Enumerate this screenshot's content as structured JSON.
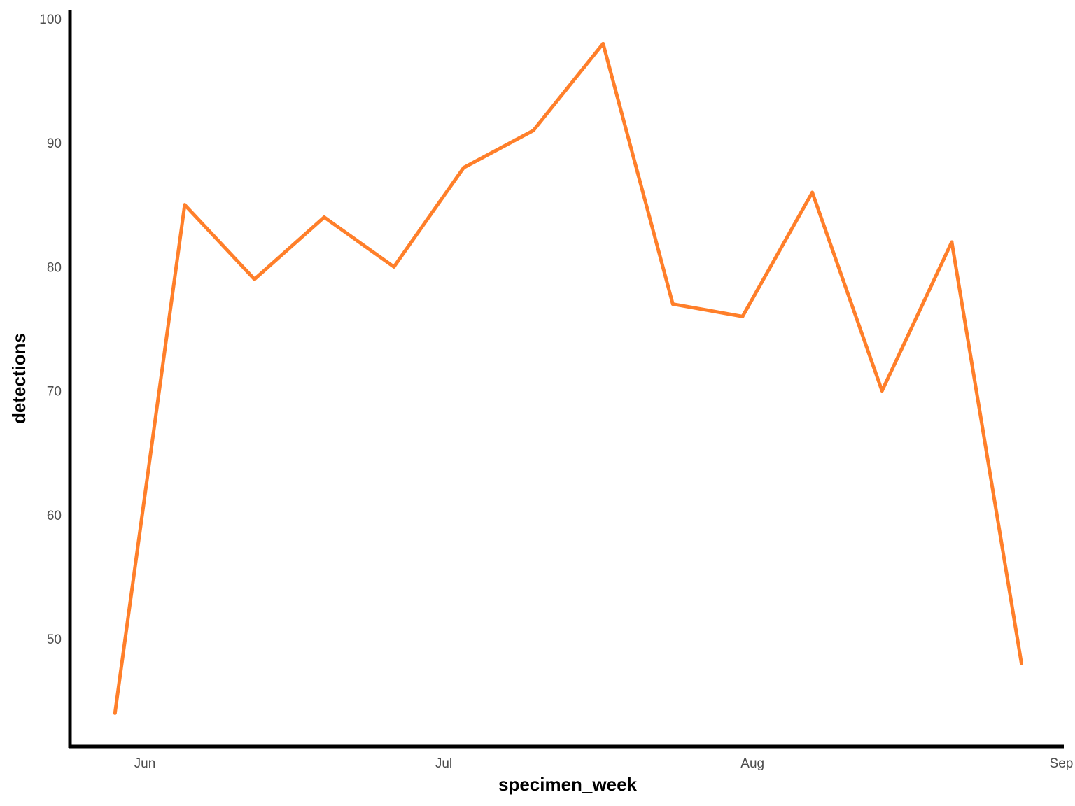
{
  "chart_data": {
    "type": "line",
    "title": "",
    "xlabel": "specimen_week",
    "ylabel": "detections",
    "x": [
      "May 29",
      "Jun 5",
      "Jun 12",
      "Jun 19",
      "Jun 26",
      "Jul 3",
      "Jul 10",
      "Jul 17",
      "Jul 24",
      "Jul 31",
      "Aug 7",
      "Aug 14",
      "Aug 21",
      "Aug 28"
    ],
    "series": [
      {
        "values": [
          44,
          85,
          79,
          84,
          80,
          88,
          91,
          98,
          77,
          76,
          86,
          70,
          82,
          48
        ],
        "color": "#FF7F2A"
      }
    ],
    "x_ticks": [
      {
        "date": "Jun 1",
        "label": "Jun"
      },
      {
        "date": "Jul 1",
        "label": "Jul"
      },
      {
        "date": "Aug 1",
        "label": "Aug"
      },
      {
        "date": "Sep 1",
        "label": "Sep"
      }
    ],
    "y_ticks": [
      50,
      60,
      70,
      80,
      90,
      100
    ],
    "xlim": [
      "May 24",
      "Sep 1"
    ],
    "ylim": [
      41.2,
      100.7
    ],
    "grid": false,
    "legend": "none"
  }
}
